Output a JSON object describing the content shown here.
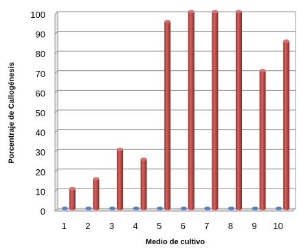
{
  "chart_data": {
    "type": "bar",
    "categories": [
      "1",
      "2",
      "3",
      "4",
      "5",
      "6",
      "7",
      "8",
      "9",
      "10"
    ],
    "series": [
      {
        "values": [
          0,
          0,
          0,
          0,
          0,
          0,
          0,
          0,
          0,
          0
        ],
        "color": "#4472c4"
      },
      {
        "values": [
          10,
          15,
          30,
          25,
          95,
          100,
          100,
          100,
          70,
          85
        ],
        "color": "#c0504d"
      }
    ],
    "title": "",
    "xlabel": "Medio de cultivo",
    "ylabel": "Porcentraje de Callogénesis",
    "ylim": [
      0,
      100
    ],
    "yticks": [
      0,
      10,
      20,
      30,
      40,
      50,
      60,
      70,
      80,
      90,
      100
    ],
    "grid": true,
    "style": "3d-cylinder"
  }
}
